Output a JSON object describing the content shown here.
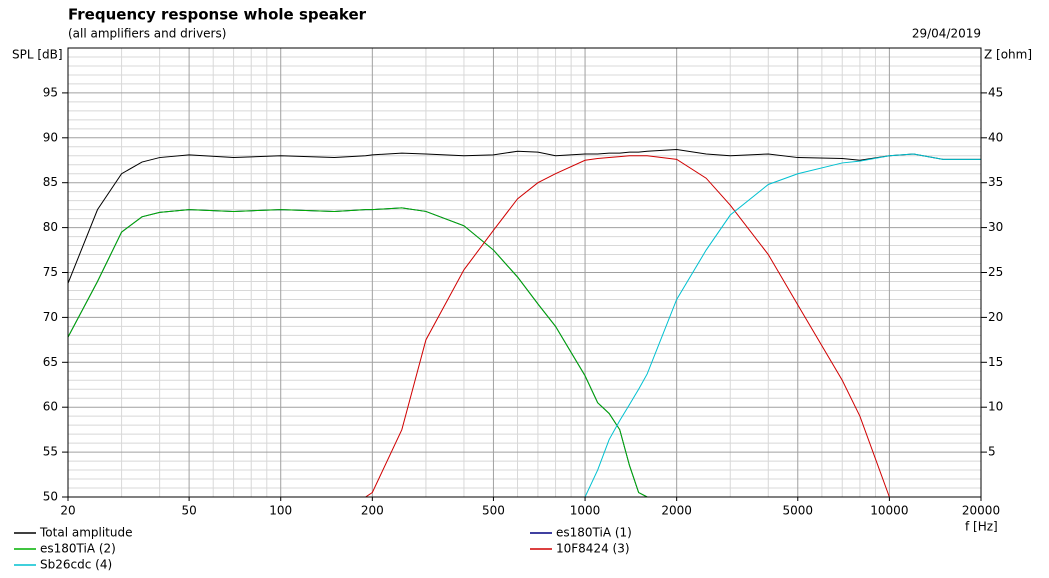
{
  "chart_data": {
    "type": "line",
    "title": "Frequency response whole speaker",
    "subtitle": "(all amplifiers and drivers)",
    "date": "29/04/2019",
    "ylabel": "SPL [dB]",
    "y2label": "Z [ohm]",
    "xlabel": "f [Hz]",
    "xscale": "log",
    "grid": true,
    "xlim": [
      20,
      20000
    ],
    "xticks": [
      20,
      50,
      100,
      200,
      500,
      1000,
      2000,
      5000,
      10000,
      20000
    ],
    "xminor": [
      30,
      40,
      60,
      70,
      80,
      90,
      300,
      400,
      600,
      700,
      800,
      900,
      3000,
      4000,
      6000,
      7000,
      8000,
      9000
    ],
    "ylim": [
      50,
      100
    ],
    "yticks": [
      50,
      55,
      60,
      65,
      70,
      75,
      80,
      85,
      90,
      95
    ],
    "yminor": [
      51,
      52,
      53,
      54,
      56,
      57,
      58,
      59,
      61,
      62,
      63,
      64,
      66,
      67,
      68,
      69,
      71,
      72,
      73,
      74,
      76,
      77,
      78,
      79,
      81,
      82,
      83,
      84,
      86,
      87,
      88,
      89,
      91,
      92,
      93,
      94,
      96,
      97,
      98,
      99
    ],
    "y2lim": [
      0,
      50
    ],
    "y2ticks": [
      5,
      10,
      15,
      20,
      25,
      30,
      35,
      40,
      45
    ],
    "x": [
      20,
      25,
      30,
      35,
      40,
      50,
      70,
      100,
      150,
      190,
      200,
      250,
      300,
      400,
      500,
      600,
      700,
      800,
      1000,
      1100,
      1200,
      1300,
      1400,
      1500,
      1600,
      2000,
      2500,
      3000,
      4000,
      5000,
      7000,
      8000,
      10000,
      12000,
      15000,
      20000
    ],
    "series": [
      {
        "name": "Total amplitude",
        "color": "#000000",
        "values": [
          73.8,
          82,
          86,
          87.3,
          87.8,
          88.1,
          87.8,
          88,
          87.8,
          88,
          88.1,
          88.3,
          88.2,
          88,
          88.1,
          88.5,
          88.4,
          88,
          88.2,
          88.2,
          88.3,
          88.3,
          88.4,
          88.4,
          88.5,
          88.7,
          88.2,
          88,
          88.2,
          87.8,
          87.7,
          87.5,
          88,
          88.2,
          87.6,
          87.6
        ]
      },
      {
        "name": "es180TiA (1)",
        "color": "#000080",
        "values": [
          67.8,
          74,
          79.5,
          81.2,
          81.7,
          82,
          81.8,
          82,
          81.8,
          82,
          82,
          82.2,
          81.8,
          80.2,
          77.5,
          74.5,
          71.5,
          69,
          63.5,
          60.5,
          59.3,
          57.5,
          53.5,
          50.5,
          50,
          50,
          50,
          50,
          50,
          50,
          50,
          50,
          50,
          50,
          50,
          50
        ]
      },
      {
        "name": "es180TiA (2)",
        "color": "#00b000",
        "values": [
          67.8,
          74,
          79.5,
          81.2,
          81.7,
          82,
          81.8,
          82,
          81.8,
          82,
          82,
          82.2,
          81.8,
          80.2,
          77.5,
          74.5,
          71.5,
          69,
          63.5,
          60.5,
          59.3,
          57.5,
          53.5,
          50.5,
          50,
          50,
          50,
          50,
          50,
          50,
          50,
          50,
          50,
          50,
          50,
          50
        ]
      },
      {
        "name": "10F8424 (3)",
        "color": "#d00000",
        "values": [
          50,
          50,
          50,
          50,
          50,
          50,
          50,
          50,
          50,
          50,
          50.5,
          57.5,
          67.5,
          75.3,
          79.7,
          83.2,
          85,
          86,
          87.5,
          87.7,
          87.8,
          87.9,
          88,
          88,
          88,
          87.6,
          85.5,
          82.5,
          77,
          71.4,
          63,
          59,
          50,
          50,
          50,
          50
        ]
      },
      {
        "name": "Sb26cdc (4)",
        "color": "#00c0d0",
        "values": [
          50,
          50,
          50,
          50,
          50,
          50,
          50,
          50,
          50,
          50,
          50,
          50,
          50,
          50,
          50,
          50,
          50,
          50,
          50,
          53,
          56.4,
          58.5,
          60.3,
          62,
          63.7,
          72,
          77.5,
          81.4,
          84.8,
          86,
          87.2,
          87.4,
          88,
          88.2,
          87.6,
          87.6
        ]
      }
    ]
  }
}
